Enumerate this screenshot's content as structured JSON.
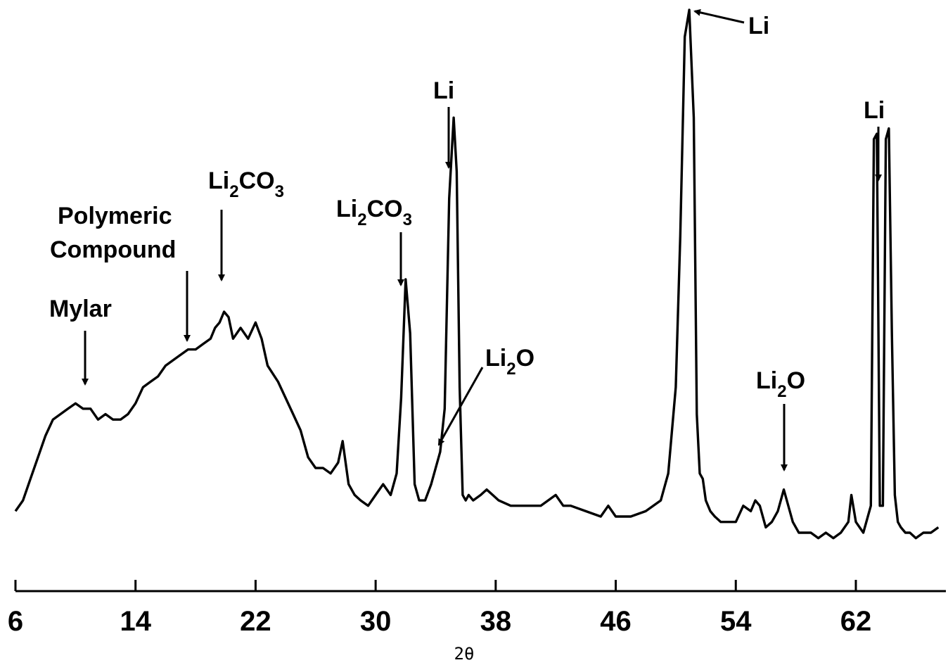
{
  "chart_data": {
    "type": "line",
    "title": "",
    "xlabel": "2θ",
    "ylabel": "",
    "xlim": [
      6,
      68
    ],
    "xticks": [
      6,
      14,
      22,
      30,
      38,
      46,
      54,
      62
    ],
    "xtick_labels": [
      "6",
      "14",
      "22",
      "30",
      "38",
      "46",
      "54",
      "62"
    ],
    "y_units": "relative intensity (unlabeled)",
    "ylim": [
      0,
      100
    ],
    "grid": false,
    "legend": "none",
    "line_color": "#000000",
    "series": [
      {
        "x": [
          6.0,
          6.5,
          7.0,
          7.5,
          8.0,
          8.5,
          9.0,
          9.5,
          10.0,
          10.5,
          11.0,
          11.5,
          12.0,
          12.5,
          13.0,
          13.5,
          14.0,
          14.5,
          15.0,
          15.5,
          16.0,
          16.5,
          17.0,
          17.5,
          18.0,
          18.5,
          19.0,
          19.3,
          19.6,
          19.9,
          20.2,
          20.5,
          21.0,
          21.5,
          22.0,
          22.4,
          22.8,
          23.5,
          24.0,
          24.5,
          25.0,
          25.5,
          26.0,
          26.5,
          27.0,
          27.5,
          27.8,
          28.2,
          28.6,
          29.0,
          29.5,
          30.0,
          30.5,
          31.0,
          31.4,
          31.7,
          32.0,
          32.3,
          32.6,
          32.9,
          33.3,
          33.7,
          34.0,
          34.3,
          34.6,
          34.9,
          35.2,
          35.4,
          35.6,
          35.8,
          36.0,
          36.2,
          36.5,
          37.0,
          37.4,
          37.8,
          38.2,
          39.0,
          40.0,
          41.0,
          42.0,
          42.5,
          43.0,
          44.0,
          45.0,
          45.5,
          46.0,
          47.0,
          48.0,
          49.0,
          49.5,
          50.0,
          50.3,
          50.6,
          50.9,
          51.2,
          51.4,
          51.6,
          51.8,
          52.0,
          52.3,
          52.6,
          53.0,
          53.5,
          54.0,
          54.5,
          55.0,
          55.3,
          55.6,
          56.0,
          56.4,
          56.8,
          57.2,
          57.5,
          57.8,
          58.2,
          58.6,
          59.0,
          59.5,
          60.0,
          60.5,
          61.0,
          61.5,
          61.7,
          62.0,
          62.5,
          63.0,
          63.2,
          63.4,
          63.6,
          63.8,
          64.0,
          64.2,
          64.4,
          64.6,
          64.8,
          65.0,
          65.3,
          65.6,
          66.0,
          66.5,
          67.0,
          67.5
        ],
        "y": [
          7,
          9,
          13,
          17,
          21,
          24,
          25,
          26,
          27,
          26,
          26,
          24,
          25,
          24,
          24,
          25,
          27,
          30,
          31,
          32,
          34,
          35,
          36,
          37,
          37,
          38,
          39,
          41,
          42,
          44,
          43,
          39,
          41,
          39,
          42,
          39,
          34,
          31,
          28,
          25,
          22,
          17,
          15,
          15,
          14,
          16,
          20,
          12,
          10,
          9,
          8,
          10,
          12,
          10,
          14,
          28,
          50,
          40,
          12,
          9,
          9,
          12,
          15,
          18,
          26,
          65,
          80,
          70,
          30,
          10,
          9,
          10,
          9,
          10,
          11,
          10,
          9,
          8,
          8,
          8,
          10,
          8,
          8,
          7,
          6,
          8,
          6,
          6,
          7,
          9,
          14,
          30,
          58,
          95,
          100,
          80,
          25,
          14,
          13,
          9,
          7,
          6,
          5,
          5,
          5,
          8,
          7,
          9,
          8,
          4,
          5,
          7,
          11,
          8,
          5,
          3,
          3,
          3,
          2,
          3,
          2,
          3,
          5,
          10,
          5,
          3,
          8,
          76,
          77,
          8,
          8,
          76,
          78,
          40,
          10,
          5,
          4,
          3,
          3,
          2,
          3,
          3,
          4
        ]
      }
    ],
    "annotations": [
      {
        "text": "Mylar",
        "x": 10.0
      },
      {
        "text": "Polymeric",
        "text2": "Compound",
        "x": 17.8
      },
      {
        "base": "Li",
        "sub": "2",
        "rest": "CO",
        "sub2": "3",
        "x": 19.9
      },
      {
        "base": "Li",
        "sub": "2",
        "rest": "CO",
        "sub2": "3",
        "x": 32.0
      },
      {
        "text": "Li",
        "x": 35.2
      },
      {
        "base": "Li",
        "sub": "2",
        "rest": "O",
        "sub2": "",
        "x": 34.3
      },
      {
        "text": "Li",
        "x": 50.9
      },
      {
        "base": "Li",
        "sub": "2",
        "rest": "O",
        "sub2": "",
        "x": 57.5
      },
      {
        "text": "Li",
        "x": 64.0
      }
    ]
  }
}
